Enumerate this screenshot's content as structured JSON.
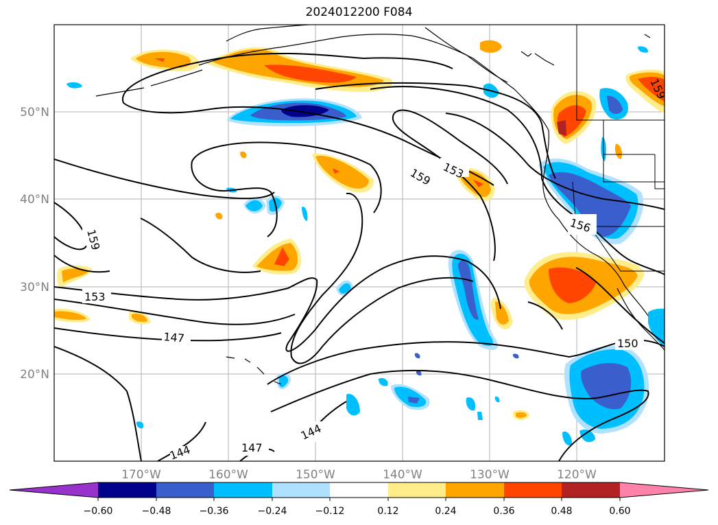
{
  "title": "2024012200 F084",
  "lat_labels": [
    "50°N",
    "40°N",
    "30°N",
    "20°N"
  ],
  "lon_labels": [
    "170°W",
    "160°W",
    "150°W",
    "140°W",
    "130°W",
    "120°W"
  ],
  "contour_labels": [
    "159",
    "153",
    "159",
    "156",
    "153",
    "147",
    "150",
    "144",
    "147",
    "144",
    "159"
  ],
  "colorbar": {
    "tick_labels": [
      "−0.60",
      "−0.48",
      "−0.36",
      "−0.24",
      "−0.12",
      "0.12",
      "0.24",
      "0.36",
      "0.48",
      "0.60"
    ],
    "colors": [
      "#9932cc",
      "#00008b",
      "#3a5fcd",
      "#00bfff",
      "#b0e2ff",
      "#ffffff",
      "#ffec8b",
      "#ffa500",
      "#ff4500",
      "#b22222",
      "#ff82ab"
    ]
  }
}
